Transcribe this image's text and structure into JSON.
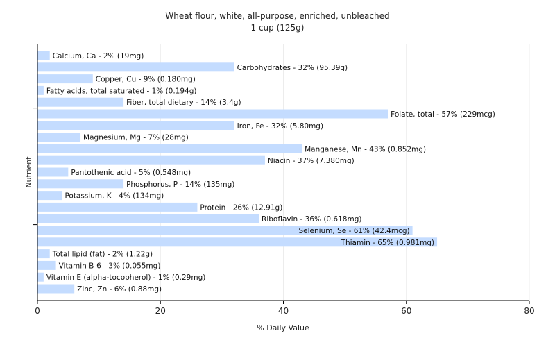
{
  "chart_data": {
    "type": "bar",
    "orientation": "horizontal",
    "title": "Wheat flour, white, all-purpose, enriched, unbleached",
    "subtitle": "1 cup (125g)",
    "xlabel": "% Daily Value",
    "ylabel": "Nutrient",
    "xlim": [
      0,
      80
    ],
    "xticks": [
      0,
      20,
      40,
      60,
      80
    ],
    "grid": true,
    "bar_color": "#c4dcff",
    "categories": [
      "Calcium, Ca",
      "Carbohydrates",
      "Copper, Cu",
      "Fatty acids, total saturated",
      "Fiber, total dietary",
      "Folate, total",
      "Iron, Fe",
      "Magnesium, Mg",
      "Manganese, Mn",
      "Niacin",
      "Pantothenic acid",
      "Phosphorus, P",
      "Potassium, K",
      "Protein",
      "Riboflavin",
      "Selenium, Se",
      "Thiamin",
      "Total lipid (fat)",
      "Vitamin B-6",
      "Vitamin E (alpha-tocopherol)",
      "Zinc, Zn"
    ],
    "values": [
      2,
      32,
      9,
      1,
      14,
      57,
      32,
      7,
      43,
      37,
      5,
      14,
      4,
      26,
      36,
      61,
      65,
      2,
      3,
      1,
      6
    ],
    "labels": [
      "Calcium, Ca - 2% (19mg)",
      "Carbohydrates - 32% (95.39g)",
      "Copper, Cu - 9% (0.180mg)",
      "Fatty acids, total saturated - 1% (0.194g)",
      "Fiber, total dietary - 14% (3.4g)",
      "Folate, total - 57% (229mcg)",
      "Iron, Fe - 32% (5.80mg)",
      "Magnesium, Mg - 7% (28mg)",
      "Manganese, Mn - 43% (0.852mg)",
      "Niacin - 37% (7.380mg)",
      "Pantothenic acid - 5% (0.548mg)",
      "Phosphorus, P - 14% (135mg)",
      "Potassium, K - 4% (134mg)",
      "Protein - 26% (12.91g)",
      "Riboflavin - 36% (0.618mg)",
      "Selenium, Se - 61% (42.4mcg)",
      "Thiamin - 65% (0.981mg)",
      "Total lipid (fat) - 2% (1.22g)",
      "Vitamin B-6 - 3% (0.055mg)",
      "Vitamin E (alpha-tocopherol) - 1% (0.29mg)",
      "Zinc, Zn - 6% (0.88mg)"
    ]
  }
}
